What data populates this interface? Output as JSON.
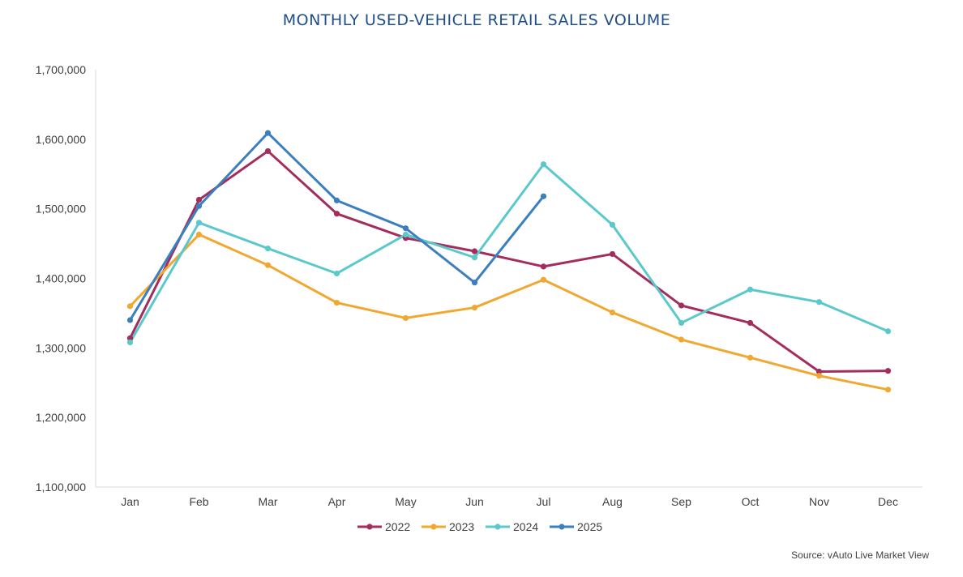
{
  "chart_data": {
    "type": "line",
    "title": "MONTHLY USED-VEHICLE RETAIL SALES VOLUME",
    "xlabel": "",
    "ylabel": "",
    "categories": [
      "Jan",
      "Feb",
      "Mar",
      "Apr",
      "May",
      "Jun",
      "Jul",
      "Aug",
      "Sep",
      "Oct",
      "Nov",
      "Dec"
    ],
    "ylim": [
      1100000,
      1700000
    ],
    "yticks": [
      1100000,
      1200000,
      1300000,
      1400000,
      1500000,
      1600000,
      1700000
    ],
    "ytick_labels": [
      "1,100,000",
      "1,200,000",
      "1,300,000",
      "1,400,000",
      "1,500,000",
      "1,600,000",
      "1,700,000"
    ],
    "grid": false,
    "legend_position": "bottom",
    "series": [
      {
        "name": "2022",
        "color": "#a32d5c",
        "values": [
          1314000,
          1513000,
          1583000,
          1493000,
          1458000,
          1439000,
          1417000,
          1435000,
          1361000,
          1336000,
          1266000,
          1267000
        ]
      },
      {
        "name": "2023",
        "color": "#f0a830",
        "values": [
          1360000,
          1463000,
          1419000,
          1365000,
          1343000,
          1358000,
          1398000,
          1351000,
          1312000,
          1286000,
          1260000,
          1240000
        ]
      },
      {
        "name": "2024",
        "color": "#5bc8cc",
        "values": [
          1308000,
          1480000,
          1443000,
          1407000,
          1463000,
          1430000,
          1564000,
          1477000,
          1336000,
          1384000,
          1366000,
          1324000
        ]
      },
      {
        "name": "2025",
        "color": "#3b7fbf",
        "values": [
          1340000,
          1504000,
          1609000,
          1512000,
          1472000,
          1394000,
          1518000,
          null,
          null,
          null,
          null,
          null
        ]
      }
    ]
  },
  "source": "Source: vAuto Live Market View"
}
